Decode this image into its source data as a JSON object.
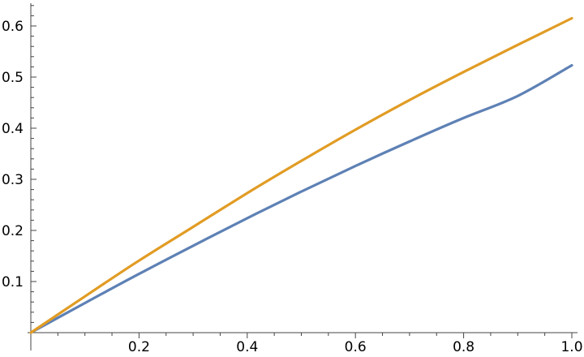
{
  "chart_data": {
    "type": "line",
    "title": "",
    "xlabel": "",
    "ylabel": "",
    "xlim": [
      0,
      1.0
    ],
    "ylim": [
      0,
      0.65
    ],
    "x_ticks": [
      0.2,
      0.4,
      0.6,
      0.8,
      1.0
    ],
    "x_tick_labels": [
      "0.2",
      "0.4",
      "0.6",
      "0.8",
      "1.0"
    ],
    "y_ticks": [
      0.1,
      0.2,
      0.3,
      0.4,
      0.5,
      0.6
    ],
    "y_tick_labels": [
      "0.1",
      "0.2",
      "0.3",
      "0.4",
      "0.5",
      "0.6"
    ],
    "grid": false,
    "x": [
      0,
      0.1,
      0.2,
      0.3,
      0.4,
      0.5,
      0.6,
      0.7,
      0.8,
      0.9,
      1.0
    ],
    "series": [
      {
        "color": "#5e81b5",
        "values": [
          0,
          0.058,
          0.115,
          0.17,
          0.224,
          0.276,
          0.326,
          0.374,
          0.42,
          0.463,
          0.523
        ]
      },
      {
        "color": "#e19c24",
        "values": [
          0,
          0.071,
          0.141,
          0.207,
          0.273,
          0.336,
          0.397,
          0.455,
          0.51,
          0.563,
          0.615
        ]
      }
    ]
  }
}
